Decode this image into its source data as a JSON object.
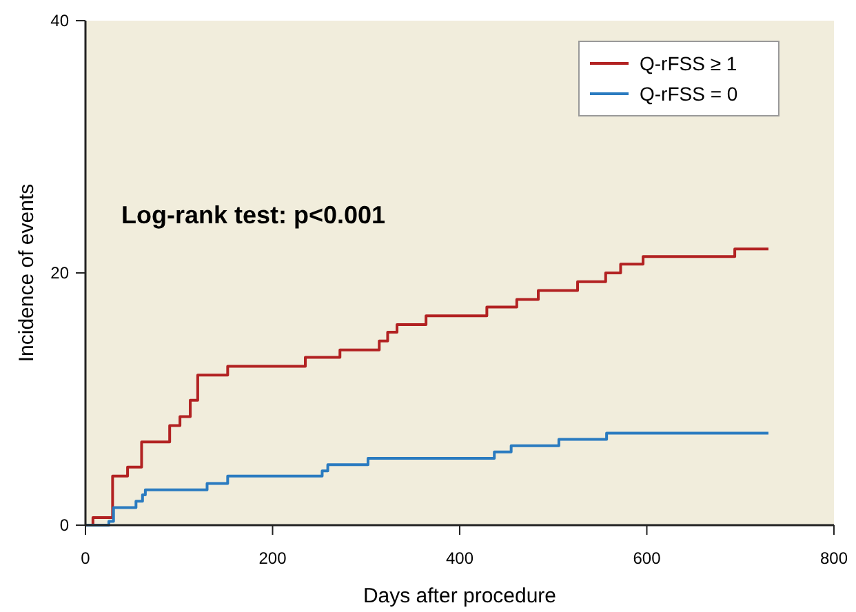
{
  "chart_data": {
    "type": "step",
    "xlabel": "Days after procedure",
    "ylabel": "Incidence of events",
    "xlim": [
      0,
      800
    ],
    "xticks": [
      0,
      200,
      400,
      600,
      800
    ],
    "ylim": [
      0,
      40
    ],
    "yticks": [
      0,
      20,
      40
    ],
    "grid": false,
    "legend": "top right",
    "annotations": [
      "Log-rank test: p<0.001"
    ],
    "series": [
      {
        "name": "Q-rFSS ≥ 1",
        "color": "#b22222",
        "x": [
          0,
          8,
          29,
          45,
          60,
          90,
          101,
          112,
          120,
          152,
          235,
          272,
          314,
          323,
          333,
          364,
          429,
          461,
          484,
          526,
          556,
          572,
          596,
          694,
          730
        ],
        "values": [
          0,
          0.6,
          3.9,
          4.6,
          6.6,
          7.9,
          8.6,
          9.9,
          11.9,
          12.6,
          13.3,
          13.9,
          14.6,
          15.3,
          15.9,
          16.6,
          17.3,
          17.9,
          18.6,
          19.3,
          20.0,
          20.7,
          21.3,
          21.9,
          21.9
        ]
      },
      {
        "name": "Q-rFSS = 0",
        "color": "#2a7bc0",
        "x": [
          0,
          25,
          30,
          54,
          61,
          64,
          130,
          152,
          253,
          259,
          302,
          437,
          455,
          506,
          557,
          730
        ],
        "values": [
          0,
          0.3,
          1.4,
          1.9,
          2.4,
          2.8,
          3.3,
          3.9,
          4.3,
          4.8,
          5.3,
          5.8,
          6.3,
          6.8,
          7.3,
          7.3
        ]
      }
    ]
  }
}
